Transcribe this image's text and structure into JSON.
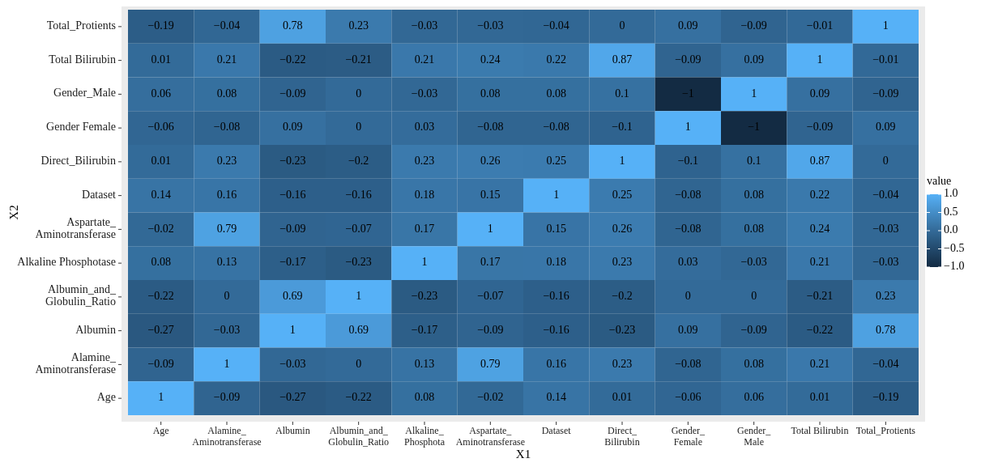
{
  "chart_data": {
    "type": "heatmap",
    "xlabel": "X1",
    "ylabel": "X2",
    "legend_title": "value",
    "categories": [
      "Age",
      "Alamine_\nAminotransferase",
      "Albumin",
      "Albumin_and_\nGlobulin_Ratio",
      "Alkaline_\nPhosphota",
      "Aspartate_\nAminotransferase",
      "Dataset",
      "Direct_\nBilirubin",
      "Gender_\nFemale",
      "Gender_\nMale",
      "Total Bilirubin",
      "Total_Protients"
    ],
    "y_categories": [
      "Total_Protients",
      "Total Bilirubin",
      "Gender_Male",
      "Gender Female",
      "Direct_Bilirubin",
      "Dataset",
      "Aspartate_\nAminotransferase",
      "Alkaline Phosphotase",
      "Albumin_and_\nGlobulin_Ratio",
      "Albumin",
      "Alamine_\nAminotransferase",
      "Age"
    ],
    "cells": [
      [
        -0.19,
        -0.04,
        0.78,
        0.23,
        -0.03,
        -0.03,
        -0.04,
        0,
        0.09,
        -0.09,
        -0.01,
        1
      ],
      [
        0.01,
        0.21,
        -0.22,
        -0.21,
        0.21,
        0.24,
        0.22,
        0.87,
        -0.09,
        0.09,
        1,
        -0.01
      ],
      [
        0.06,
        0.08,
        -0.09,
        0,
        -0.03,
        0.08,
        0.08,
        0.1,
        -1,
        1,
        0.09,
        -0.09
      ],
      [
        -0.06,
        -0.08,
        0.09,
        0,
        0.03,
        -0.08,
        -0.08,
        -0.1,
        1,
        -1,
        -0.09,
        0.09
      ],
      [
        0.01,
        0.23,
        -0.23,
        -0.2,
        0.23,
        0.26,
        0.25,
        1,
        -0.1,
        0.1,
        0.87,
        0
      ],
      [
        0.14,
        0.16,
        -0.16,
        -0.16,
        0.18,
        0.15,
        1,
        0.25,
        -0.08,
        0.08,
        0.22,
        -0.04
      ],
      [
        -0.02,
        0.79,
        -0.09,
        -0.07,
        0.17,
        1,
        0.15,
        0.26,
        -0.08,
        0.08,
        0.24,
        -0.03
      ],
      [
        0.08,
        0.13,
        -0.17,
        -0.23,
        1,
        0.17,
        0.18,
        0.23,
        0.03,
        -0.03,
        0.21,
        -0.03
      ],
      [
        -0.22,
        0,
        0.69,
        1,
        -0.23,
        -0.07,
        -0.16,
        -0.2,
        0,
        0,
        -0.21,
        0.23
      ],
      [
        -0.27,
        -0.03,
        1,
        0.69,
        -0.17,
        -0.09,
        -0.16,
        -0.23,
        0.09,
        -0.09,
        -0.22,
        0.78
      ],
      [
        -0.09,
        1,
        -0.03,
        0,
        0.13,
        0.79,
        0.16,
        0.23,
        -0.08,
        0.08,
        0.21,
        -0.04
      ],
      [
        1,
        -0.09,
        -0.27,
        -0.22,
        0.08,
        -0.02,
        0.14,
        0.01,
        -0.06,
        0.06,
        0.01,
        -0.19
      ]
    ],
    "cell_labels": [
      [
        "−0.19",
        "−0.04",
        "0.78",
        "0.23",
        "−0.03",
        "−0.03",
        "−0.04",
        "0",
        "0.09",
        "−0.09",
        "−0.01",
        "1"
      ],
      [
        "0.01",
        "0.21",
        "−0.22",
        "−0.21",
        "0.21",
        "0.24",
        "0.22",
        "0.87",
        "−0.09",
        "0.09",
        "1",
        "−0.01"
      ],
      [
        "0.06",
        "0.08",
        "−0.09",
        "0",
        "−0.03",
        "0.08",
        "0.08",
        "0.1",
        "−1",
        "1",
        "0.09",
        "−0.09"
      ],
      [
        "−0.06",
        "−0.08",
        "0.09",
        "0",
        "0.03",
        "−0.08",
        "−0.08",
        "−0.1",
        "1",
        "−1",
        "−0.09",
        "0.09"
      ],
      [
        "0.01",
        "0.23",
        "−0.23",
        "−0.2",
        "0.23",
        "0.26",
        "0.25",
        "1",
        "−0.1",
        "0.1",
        "0.87",
        "0"
      ],
      [
        "0.14",
        "0.16",
        "−0.16",
        "−0.16",
        "0.18",
        "0.15",
        "1",
        "0.25",
        "−0.08",
        "0.08",
        "0.22",
        "−0.04"
      ],
      [
        "−0.02",
        "0.79",
        "−0.09",
        "−0.07",
        "0.17",
        "1",
        "0.15",
        "0.26",
        "−0.08",
        "0.08",
        "0.24",
        "−0.03"
      ],
      [
        "0.08",
        "0.13",
        "−0.17",
        "−0.23",
        "1",
        "0.17",
        "0.18",
        "0.23",
        "0.03",
        "−0.03",
        "0.21",
        "−0.03"
      ],
      [
        "−0.22",
        "0",
        "0.69",
        "1",
        "−0.23",
        "−0.07",
        "−0.16",
        "−0.2",
        "0",
        "0",
        "−0.21",
        "0.23"
      ],
      [
        "−0.27",
        "−0.03",
        "1",
        "0.69",
        "−0.17",
        "−0.09",
        "−0.16",
        "−0.23",
        "0.09",
        "−0.09",
        "−0.22",
        "0.78"
      ],
      [
        "−0.09",
        "1",
        "−0.03",
        "0",
        "0.13",
        "0.79",
        "0.16",
        "0.23",
        "−0.08",
        "0.08",
        "0.21",
        "−0.04"
      ],
      [
        "1",
        "−0.09",
        "−0.27",
        "−0.22",
        "0.08",
        "−0.02",
        "0.14",
        "0.01",
        "−0.06",
        "0.06",
        "0.01",
        "−0.19"
      ]
    ],
    "colors": [
      "#132b43",
      "#56b1f7"
    ],
    "clim": [
      -1,
      1
    ],
    "cticks": [
      {
        "value": -1,
        "label": "−1.0"
      },
      {
        "value": -0.5,
        "label": "−0.5"
      },
      {
        "value": 0,
        "label": "0.0"
      },
      {
        "value": 0.5,
        "label": "0.5"
      },
      {
        "value": 1,
        "label": "1.0"
      }
    ]
  }
}
